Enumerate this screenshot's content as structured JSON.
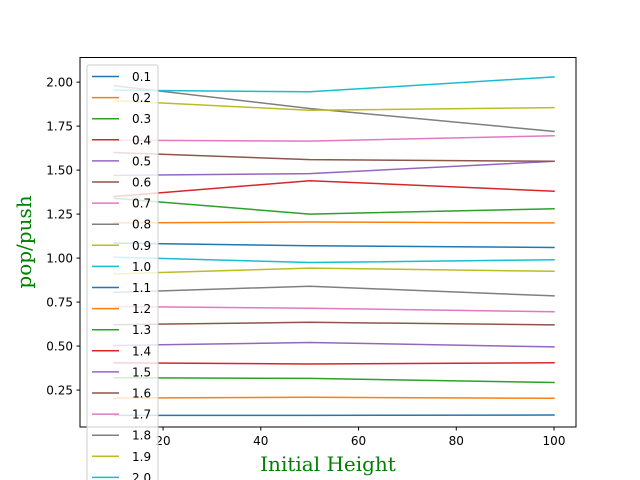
{
  "chart_data": {
    "type": "line",
    "title": "",
    "xlabel": "Initial Height",
    "ylabel": "pop/push",
    "label_color": "#008000",
    "xlim": [
      3,
      104.5
    ],
    "ylim": [
      0.04,
      2.14
    ],
    "xticks": [
      20,
      40,
      60,
      80,
      100
    ],
    "yticks": [
      0.25,
      0.5,
      0.75,
      1.0,
      1.25,
      1.5,
      1.75,
      2.0
    ],
    "ytick_labels": [
      "0.25",
      "0.50",
      "0.75",
      "1.00",
      "1.25",
      "1.50",
      "1.75",
      "2.00"
    ],
    "x": [
      10,
      50,
      100
    ],
    "legend_position": "upper-left",
    "grid": false,
    "series": [
      {
        "name": "0.1",
        "color": "#1f77b4",
        "values": [
          0.106,
          0.106,
          0.108
        ]
      },
      {
        "name": "0.2",
        "color": "#ff7f0e",
        "values": [
          0.205,
          0.209,
          0.203
        ]
      },
      {
        "name": "0.3",
        "color": "#2ca02c",
        "values": [
          0.32,
          0.316,
          0.293
        ]
      },
      {
        "name": "0.4",
        "color": "#d62728",
        "values": [
          0.405,
          0.398,
          0.405
        ]
      },
      {
        "name": "0.5",
        "color": "#9467bd",
        "values": [
          0.503,
          0.52,
          0.495
        ]
      },
      {
        "name": "0.6",
        "color": "#8c564b",
        "values": [
          0.622,
          0.635,
          0.62
        ]
      },
      {
        "name": "0.7",
        "color": "#e377c2",
        "values": [
          0.725,
          0.715,
          0.695
        ]
      },
      {
        "name": "0.8",
        "color": "#7f7f7f",
        "values": [
          0.805,
          0.84,
          0.785
        ]
      },
      {
        "name": "0.9",
        "color": "#bcbd22",
        "values": [
          0.91,
          0.943,
          0.925
        ]
      },
      {
        "name": "1.0",
        "color": "#17becf",
        "values": [
          1.005,
          0.975,
          0.99
        ]
      },
      {
        "name": "1.1",
        "color": "#1f77b4",
        "values": [
          1.085,
          1.07,
          1.06
        ]
      },
      {
        "name": "1.2",
        "color": "#ff7f0e",
        "values": [
          1.2,
          1.205,
          1.2
        ]
      },
      {
        "name": "1.3",
        "color": "#2ca02c",
        "values": [
          1.34,
          1.25,
          1.28
        ]
      },
      {
        "name": "1.4",
        "color": "#d62728",
        "values": [
          1.35,
          1.44,
          1.38
        ]
      },
      {
        "name": "1.5",
        "color": "#9467bd",
        "values": [
          1.47,
          1.48,
          1.55
        ]
      },
      {
        "name": "1.6",
        "color": "#8c564b",
        "values": [
          1.6,
          1.56,
          1.55
        ]
      },
      {
        "name": "1.7",
        "color": "#e377c2",
        "values": [
          1.67,
          1.665,
          1.695
        ]
      },
      {
        "name": "1.8",
        "color": "#7f7f7f",
        "values": [
          1.98,
          1.85,
          1.72
        ]
      },
      {
        "name": "1.9",
        "color": "#bcbd22",
        "values": [
          1.895,
          1.84,
          1.855
        ]
      },
      {
        "name": "2.0",
        "color": "#17becf",
        "values": [
          1.955,
          1.945,
          2.03
        ]
      }
    ]
  }
}
